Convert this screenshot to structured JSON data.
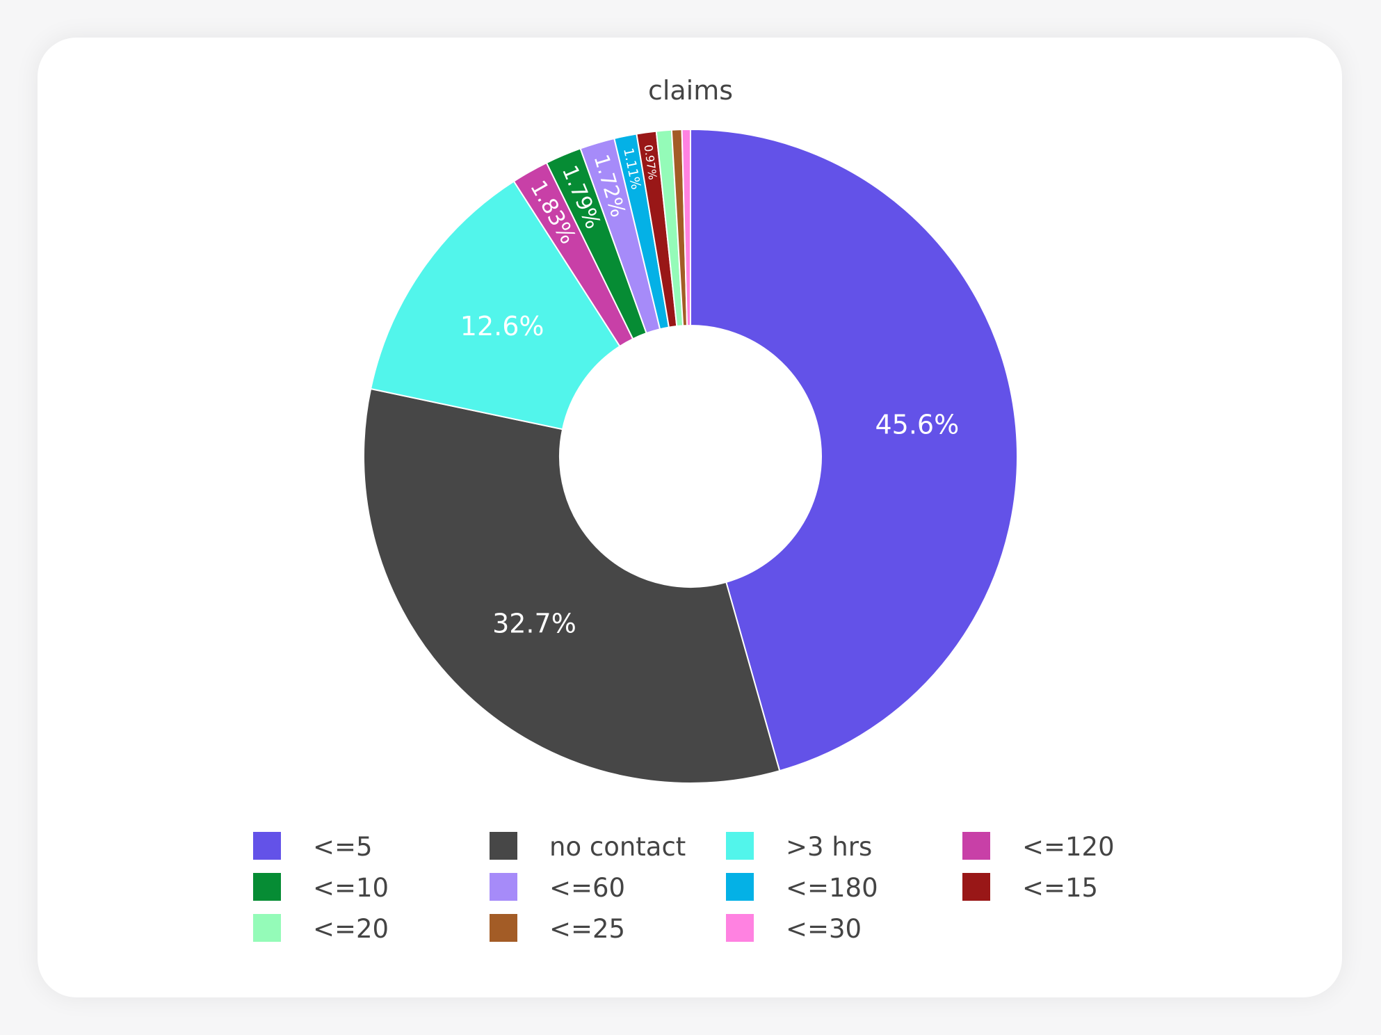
{
  "chart_data": {
    "type": "pie",
    "hole": 0.4,
    "title": "claims",
    "legend_position": "bottom",
    "slices": [
      {
        "label": "<=5",
        "value": 45.6,
        "value_label": "45.6%",
        "color": "#6352e8"
      },
      {
        "label": "no contact",
        "value": 32.7,
        "value_label": "32.7%",
        "color": "#474747"
      },
      {
        "label": ">3 hrs",
        "value": 12.6,
        "value_label": "12.6%",
        "color": "#52f5eb"
      },
      {
        "label": "<=120",
        "value": 1.83,
        "value_label": "1.83%",
        "color": "#c840a7"
      },
      {
        "label": "<=10",
        "value": 1.79,
        "value_label": "1.79%",
        "color": "#068c34"
      },
      {
        "label": "<=60",
        "value": 1.72,
        "value_label": "1.72%",
        "color": "#a68bf9"
      },
      {
        "label": "<=180",
        "value": 1.11,
        "value_label": "1.11%",
        "color": "#04b1e6"
      },
      {
        "label": "<=15",
        "value": 0.97,
        "value_label": "0.97%",
        "color": "#991717"
      },
      {
        "label": "<=20",
        "value": 0.75,
        "color": "#94fbb8"
      },
      {
        "label": "<=25",
        "value": 0.5,
        "color": "#a35c26"
      },
      {
        "label": "<=30",
        "value": 0.42,
        "color": "#ff82e1"
      }
    ]
  }
}
